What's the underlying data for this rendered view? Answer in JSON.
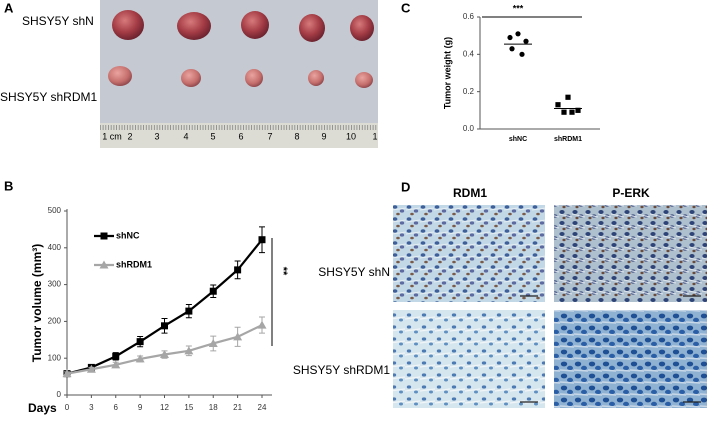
{
  "panel_labels": [
    "A",
    "B",
    "C",
    "D"
  ],
  "photo_a": {
    "labels": [
      "SHSY5Y shN",
      "SHSY5Y shRDM1"
    ],
    "ruler": [
      "1 cm",
      "2",
      "3",
      "4",
      "5",
      "6",
      "7",
      "8",
      "9",
      "10",
      "1"
    ]
  },
  "photo_d": {
    "columns": [
      "RDM1",
      "P-ERK"
    ],
    "rows": [
      "SHSY5Y shN",
      "SHSY5Y shRDM1"
    ]
  },
  "chart_data": [
    {
      "type": "line",
      "xlabel": "Days",
      "ylabel": "Tumor volume (mm³)",
      "annotation": "**",
      "x": [
        0,
        3,
        6,
        9,
        12,
        15,
        18,
        21,
        24
      ],
      "xlim": [
        0,
        24
      ],
      "xticks": [
        0,
        3,
        6,
        9,
        12,
        15,
        18,
        21,
        24
      ],
      "ylim": [
        0,
        500
      ],
      "yticks": [
        0,
        100,
        200,
        300,
        400,
        500
      ],
      "series": [
        {
          "name": "shNC",
          "color": "#000000",
          "marker": "square",
          "values": [
            58,
            75,
            105,
            145,
            188,
            228,
            282,
            340,
            422
          ],
          "errors": [
            6,
            7,
            10,
            14,
            20,
            18,
            17,
            24,
            35
          ]
        },
        {
          "name": "shRDM1",
          "color": "#a6a6a6",
          "marker": "triangle",
          "values": [
            58,
            70,
            82,
            98,
            110,
            120,
            140,
            158,
            190
          ],
          "errors": [
            5,
            5,
            7,
            8,
            10,
            13,
            20,
            26,
            22
          ]
        }
      ]
    },
    {
      "type": "dot",
      "ylabel": "Tumor weight (g)",
      "annotation": "***",
      "categories": [
        "shNC",
        "shRDM1"
      ],
      "markers": [
        "circle",
        "square"
      ],
      "points": [
        [
          0.51,
          0.49,
          0.47,
          0.43,
          0.4
        ],
        [
          0.17,
          0.13,
          0.1,
          0.09,
          0.09
        ]
      ],
      "means": [
        0.455,
        0.11
      ],
      "ylim": [
        0,
        0.6
      ],
      "yticks": [
        {
          "value": 0,
          "label": "0.0"
        },
        0.2,
        0.4,
        0.6
      ]
    }
  ]
}
